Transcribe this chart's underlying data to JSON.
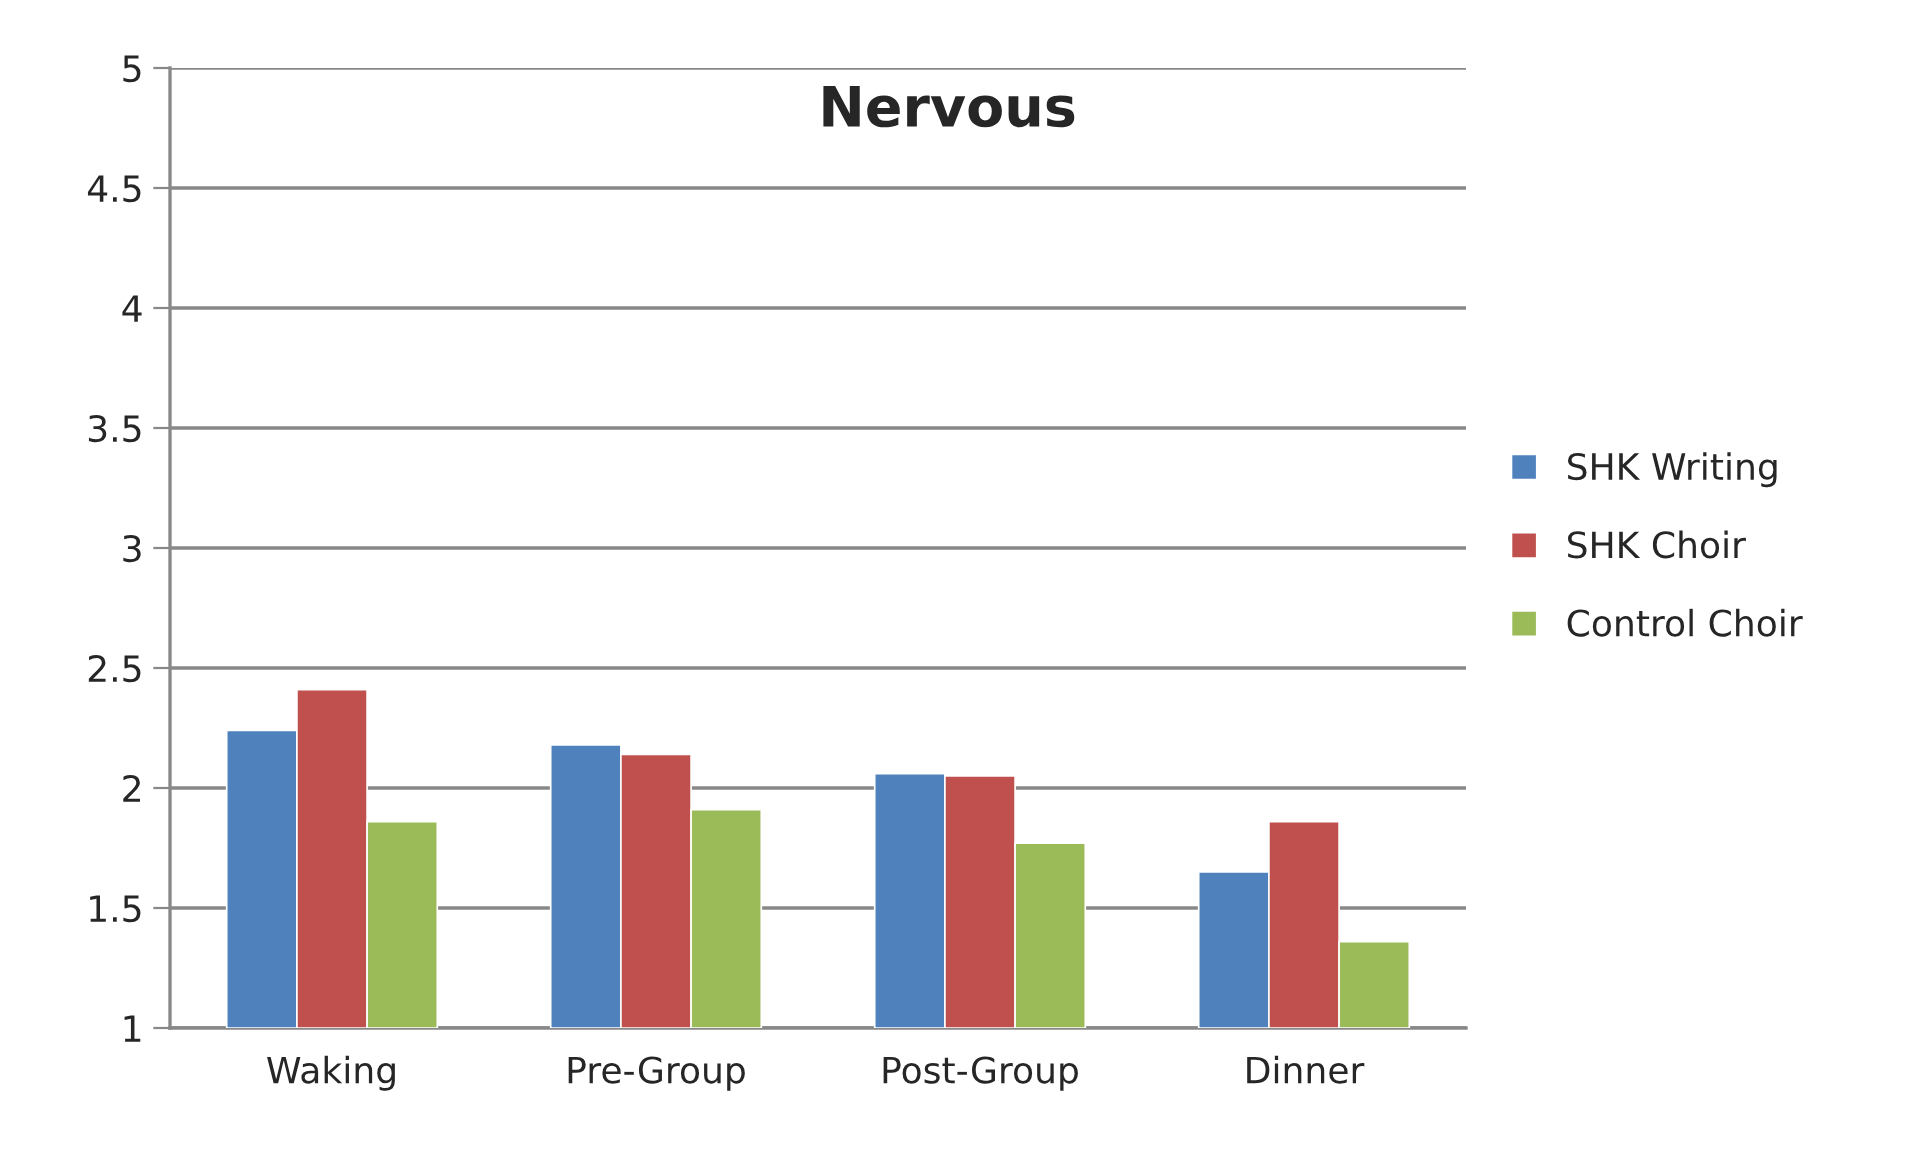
{
  "chart_data": {
    "type": "bar",
    "title": "Nervous",
    "categories": [
      "Waking",
      "Pre-Group",
      "Post-Group",
      "Dinner"
    ],
    "series": [
      {
        "name": "SHK Writing",
        "color": "#4f81bd",
        "values": [
          2.24,
          2.18,
          2.06,
          1.65
        ]
      },
      {
        "name": "SHK Choir",
        "color": "#c0504d",
        "values": [
          2.41,
          2.14,
          2.05,
          1.86
        ]
      },
      {
        "name": "Control Choir",
        "color": "#9bbb59",
        "values": [
          1.86,
          1.91,
          1.77,
          1.36
        ]
      }
    ],
    "ylim": [
      1,
      5
    ],
    "yticks": [
      1,
      1.5,
      2,
      2.5,
      3,
      3.5,
      4,
      4.5,
      5
    ],
    "grid": "y",
    "legend": "right"
  }
}
